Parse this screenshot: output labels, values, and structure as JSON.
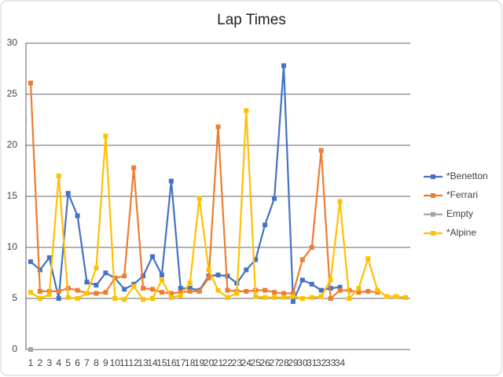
{
  "chart_data": {
    "type": "line",
    "title": "Lap Times",
    "categories": [
      "1",
      "2",
      "3",
      "4",
      "5",
      "6",
      "7",
      "8",
      "9",
      "10",
      "11",
      "12",
      "13",
      "14",
      "15",
      "16",
      "17",
      "18",
      "19",
      "20",
      "21",
      "22",
      "23",
      "24",
      "25",
      "26",
      "27",
      "28",
      "29",
      "30",
      "31",
      "32",
      "33",
      "34",
      null,
      null,
      null,
      null,
      null,
      null,
      null
    ],
    "series": [
      {
        "name": "*Benetton",
        "color": "#4472c4",
        "values": [
          8.6,
          7.8,
          9.0,
          5.0,
          15.3,
          13.1,
          6.6,
          6.3,
          7.5,
          7.0,
          5.9,
          6.4,
          7.2,
          9.1,
          7.3,
          16.5,
          6.0,
          6.0,
          5.8,
          7.2,
          7.3,
          7.2,
          6.5,
          7.8,
          8.8,
          12.2,
          14.8,
          27.8,
          4.7,
          6.8,
          6.4,
          5.8,
          6.0,
          6.1,
          null,
          null,
          null,
          null,
          null,
          null,
          null
        ]
      },
      {
        "name": "*Ferrari",
        "color": "#ed7d31",
        "values": [
          26.1,
          5.7,
          5.7,
          5.7,
          6.0,
          5.8,
          5.5,
          5.5,
          5.6,
          7.0,
          7.2,
          17.8,
          6.0,
          5.9,
          5.6,
          5.5,
          5.6,
          5.7,
          5.7,
          7.0,
          21.8,
          5.8,
          5.7,
          5.7,
          5.8,
          5.8,
          5.6,
          5.5,
          5.5,
          8.8,
          10.0,
          19.5,
          5.0,
          5.8,
          5.8,
          5.6,
          5.7,
          5.6,
          null,
          null,
          null
        ]
      },
      {
        "name": "Empty",
        "color": "#a5a5a5",
        "values": [
          0,
          null,
          null,
          null,
          null,
          null,
          null,
          null,
          null,
          null,
          null,
          null,
          null,
          null,
          null,
          null,
          null,
          null,
          null,
          null,
          null,
          null,
          null,
          null,
          null,
          null,
          null,
          null,
          null,
          null,
          null,
          null,
          null,
          null,
          null,
          null,
          null,
          null,
          null,
          null,
          null
        ]
      },
      {
        "name": "*Alpine",
        "color": "#ffc000",
        "values": [
          5.6,
          5.0,
          5.4,
          17.0,
          5.1,
          5.0,
          5.5,
          8.0,
          20.9,
          5.0,
          4.9,
          6.2,
          4.9,
          5.0,
          6.8,
          5.1,
          5.3,
          6.5,
          14.8,
          7.8,
          5.8,
          5.1,
          5.5,
          23.4,
          5.2,
          5.1,
          5.1,
          5.1,
          5.2,
          5.0,
          5.1,
          5.2,
          6.8,
          14.5,
          5.0,
          6.0,
          8.9,
          5.8,
          5.2,
          5.2,
          5.1
        ]
      }
    ],
    "ylim": [
      0,
      30
    ],
    "yticks": [
      0,
      5,
      10,
      15,
      20,
      25,
      30
    ],
    "grid": true,
    "legend": "right"
  }
}
